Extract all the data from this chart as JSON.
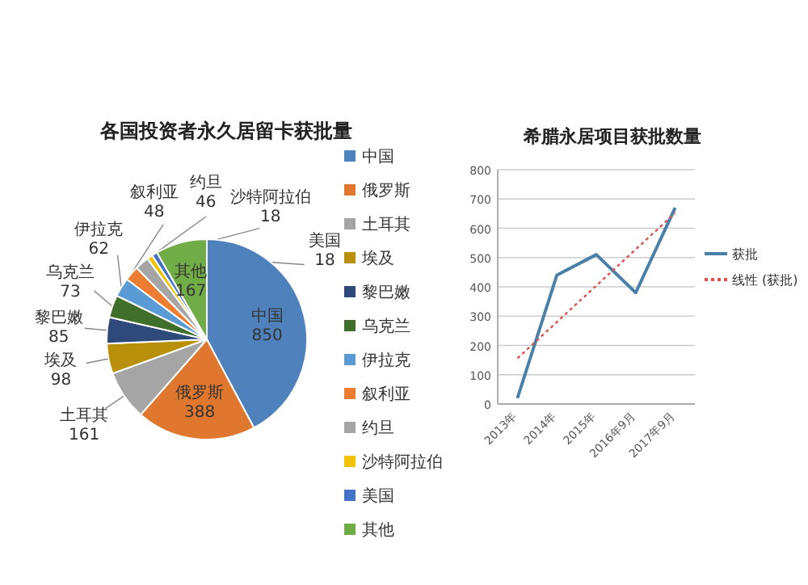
{
  "chart_data": [
    {
      "type": "pie",
      "title": "各国投资者永久居留卡获批量",
      "categories": [
        "中国",
        "俄罗斯",
        "土耳其",
        "埃及",
        "黎巴嫩",
        "乌克兰",
        "伊拉克",
        "叙利亚",
        "约旦",
        "沙特阿拉伯",
        "美国",
        "其他"
      ],
      "values": [
        850,
        388,
        161,
        98,
        85,
        73,
        62,
        48,
        46,
        18,
        18,
        167
      ],
      "colors": [
        "#4f81bd",
        "#e0772f",
        "#a5a5a5",
        "#b8900c",
        "#2e4a7a",
        "#3f6f2a",
        "#5b9bd5",
        "#ed7d31",
        "#a5a5a5",
        "#f2c200",
        "#4472c4",
        "#70ad47"
      ],
      "data_labels": true,
      "legend": "right"
    },
    {
      "type": "line",
      "title": "希腊永居项目获批数量",
      "categories": [
        "2013年",
        "2014年",
        "2015年",
        "2016年9月",
        "2017年9月"
      ],
      "series": [
        {
          "name": "获批",
          "color": "#4a7fa8",
          "values": [
            20,
            440,
            510,
            380,
            670
          ]
        },
        {
          "name": "线性 (获批)",
          "color": "#d9534f",
          "values": [
            156,
            280,
            404,
            528,
            652
          ],
          "line_style": "dotted"
        }
      ],
      "ylim": [
        0,
        800
      ],
      "yticks": [
        0,
        100,
        200,
        300,
        400,
        500,
        600,
        700,
        800
      ],
      "grid": "y",
      "legend": "right",
      "marker": "none"
    }
  ]
}
